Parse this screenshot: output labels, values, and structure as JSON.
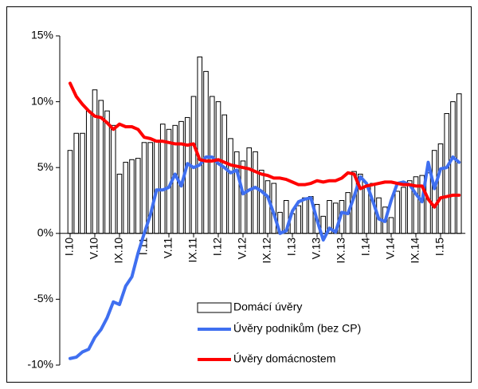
{
  "chart_data": {
    "type": "bar-line",
    "categories": [
      "I.10",
      null,
      null,
      null,
      "V.10",
      null,
      null,
      null,
      "IX.10",
      null,
      null,
      null,
      "I.11",
      null,
      null,
      null,
      "V.11",
      null,
      null,
      null,
      "IX.11",
      null,
      null,
      null,
      "I.12",
      null,
      null,
      null,
      "V.12",
      null,
      null,
      null,
      "IX.12",
      null,
      null,
      null,
      "I.13",
      null,
      null,
      null,
      "V.13",
      null,
      null,
      null,
      "IX.13",
      null,
      null,
      null,
      "I.14",
      null,
      null,
      null,
      "V.14",
      null,
      null,
      null,
      "IX.14",
      null,
      null,
      null,
      "I.15",
      null,
      null,
      null
    ],
    "series": [
      {
        "name": "Domácí úvěry",
        "type": "bar",
        "color": "#ffffff",
        "values": [
          6.3,
          7.6,
          7.6,
          9.3,
          10.9,
          10.1,
          9.3,
          8.2,
          4.5,
          5.4,
          5.6,
          5.7,
          6.9,
          6.9,
          7.0,
          8.3,
          7.9,
          8.2,
          8.5,
          8.8,
          10.4,
          13.4,
          12.3,
          10.4,
          10.0,
          9.0,
          7.2,
          6.2,
          5.5,
          6.5,
          6.2,
          4.8,
          4.0,
          3.8,
          1.6,
          2.5,
          1.5,
          2.1,
          2.7,
          2.8,
          2.2,
          1.3,
          2.5,
          2.3,
          2.5,
          3.1,
          4.7,
          4.5,
          3.5,
          3.8,
          2.7,
          2.0,
          1.2,
          3.2,
          3.5,
          4.0,
          4.3,
          4.4,
          4.6,
          6.3,
          6.8,
          9.1,
          10.0,
          10.6
        ]
      },
      {
        "name": "Úvěry podnikům (bez CP)",
        "type": "line",
        "color": "#3f6ff0",
        "values": [
          -9.5,
          -9.4,
          -9.0,
          -8.8,
          -7.9,
          -7.3,
          -6.4,
          -5.2,
          -5.4,
          -4.0,
          -3.3,
          -1.5,
          0.0,
          1.4,
          3.3,
          3.3,
          3.5,
          4.5,
          3.6,
          5.3,
          5.0,
          5.2,
          5.8,
          5.8,
          5.3,
          5.0,
          4.6,
          4.8,
          3.0,
          3.3,
          3.5,
          3.2,
          2.8,
          1.5,
          0.0,
          0.2,
          1.7,
          2.4,
          2.6,
          2.7,
          1.0,
          -0.5,
          0.4,
          0.1,
          1.6,
          1.5,
          2.8,
          4.3,
          3.8,
          2.5,
          1.1,
          0.9,
          2.5,
          3.8,
          3.9,
          3.7,
          3.0,
          2.4,
          5.4,
          3.4,
          4.9,
          5.0,
          5.8,
          5.4
        ]
      },
      {
        "name": "Úvěry domácnostem",
        "type": "line",
        "color": "#ff0000",
        "values": [
          11.4,
          10.4,
          9.8,
          9.3,
          8.9,
          8.8,
          8.4,
          7.9,
          8.3,
          8.1,
          8.1,
          7.9,
          7.3,
          7.2,
          7.0,
          7.0,
          6.9,
          6.8,
          6.8,
          6.7,
          6.8,
          5.6,
          5.5,
          5.5,
          5.6,
          5.4,
          5.2,
          5.1,
          5.0,
          4.9,
          4.7,
          4.5,
          4.4,
          4.2,
          4.2,
          4.1,
          3.9,
          3.7,
          3.7,
          3.8,
          4.0,
          3.9,
          4.0,
          4.0,
          4.2,
          4.6,
          4.5,
          3.4,
          3.6,
          3.7,
          3.8,
          3.9,
          3.9,
          3.8,
          3.7,
          3.7,
          3.6,
          3.6,
          2.6,
          2.0,
          2.7,
          2.8,
          2.9,
          2.9
        ]
      }
    ],
    "ylim": [
      -10,
      15
    ],
    "yticks": [
      {
        "value": -10,
        "label": "-10%"
      },
      {
        "value": -5,
        "label": "-5%"
      },
      {
        "value": 0,
        "label": "0%"
      },
      {
        "value": 5,
        "label": "5%"
      },
      {
        "value": 10,
        "label": "10%"
      },
      {
        "value": 15,
        "label": "15%"
      }
    ],
    "grid": false
  }
}
